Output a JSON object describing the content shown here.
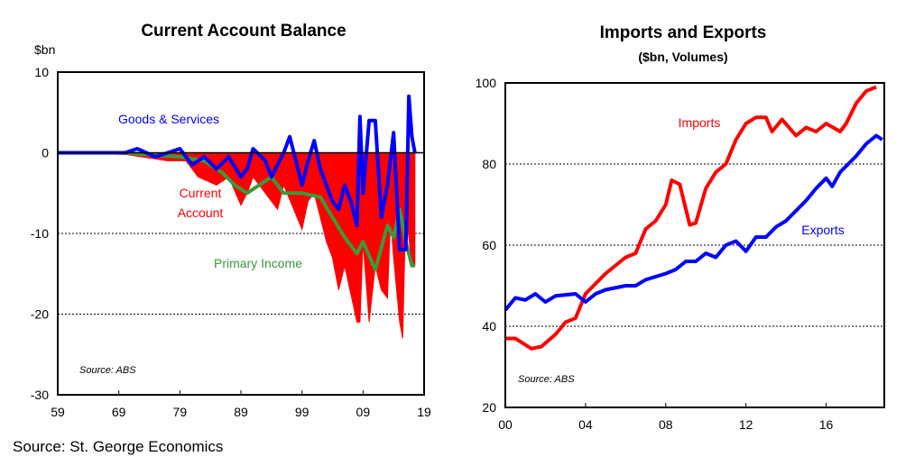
{
  "footer": "Source: St. George Economics",
  "chart_data": [
    {
      "type": "line",
      "title": "Current Account Balance",
      "ylabel": "$bn",
      "source": "Source: ABS",
      "xlim": [
        1959,
        2019
      ],
      "ylim": [
        -30,
        10
      ],
      "x_ticks": [
        "59",
        "69",
        "79",
        "89",
        "99",
        "09",
        "19"
      ],
      "y_ticks": [
        "10",
        "0",
        "-10",
        "-20",
        "-30"
      ],
      "grid": "dotted horizontal at -10 and -20",
      "series": [
        {
          "name": "Current Account",
          "style": "area",
          "color": "#ff0000",
          "points": [
            [
              1959,
              0
            ],
            [
              1970,
              -0.2
            ],
            [
              1977,
              -1
            ],
            [
              1980,
              -1
            ],
            [
              1982,
              -3
            ],
            [
              1985,
              -4
            ],
            [
              1987,
              -3
            ],
            [
              1989,
              -6.5
            ],
            [
              1990,
              -5
            ],
            [
              1991,
              -3
            ],
            [
              1993,
              -5
            ],
            [
              1995,
              -7
            ],
            [
              1996,
              -4
            ],
            [
              1999,
              -9.5
            ],
            [
              2000,
              -6
            ],
            [
              2001,
              -5
            ],
            [
              2003,
              -11
            ],
            [
              2004,
              -13
            ],
            [
              2005,
              -17
            ],
            [
              2006,
              -14
            ],
            [
              2008,
              -21
            ],
            [
              2008.5,
              -21
            ],
            [
              2009,
              -11
            ],
            [
              2010,
              -21
            ],
            [
              2011,
              -14
            ],
            [
              2012,
              -17
            ],
            [
              2013,
              -18
            ],
            [
              2013.5,
              -8
            ],
            [
              2014,
              -13
            ],
            [
              2015,
              -21
            ],
            [
              2015.5,
              -23
            ],
            [
              2016,
              -7
            ],
            [
              2017,
              -14
            ],
            [
              2017.5,
              -14
            ]
          ]
        },
        {
          "name": "Primary Income",
          "style": "line",
          "color": "#3a9a3a",
          "points": [
            [
              1959,
              0
            ],
            [
              1970,
              0
            ],
            [
              1975,
              -0.3
            ],
            [
              1979,
              -0.5
            ],
            [
              1983,
              -1
            ],
            [
              1986,
              -2.5
            ],
            [
              1988,
              -4
            ],
            [
              1990,
              -5
            ],
            [
              1992,
              -4
            ],
            [
              1994,
              -3
            ],
            [
              1996,
              -5
            ],
            [
              1999,
              -5
            ],
            [
              2002,
              -5.5
            ],
            [
              2004,
              -8
            ],
            [
              2006,
              -10.5
            ],
            [
              2008,
              -12.5
            ],
            [
              2009,
              -11
            ],
            [
              2011,
              -14.5
            ],
            [
              2013,
              -9
            ],
            [
              2014,
              -10.5
            ],
            [
              2015,
              -7
            ],
            [
              2016,
              -11
            ],
            [
              2017,
              -14
            ],
            [
              2017.5,
              -14
            ]
          ]
        },
        {
          "name": "Goods & Services",
          "style": "line",
          "color": "#0000ff",
          "points": [
            [
              1959,
              0
            ],
            [
              1965,
              0
            ],
            [
              1970,
              0
            ],
            [
              1972,
              0.5
            ],
            [
              1975,
              -0.5
            ],
            [
              1979,
              0.5
            ],
            [
              1981,
              -1.5
            ],
            [
              1983,
              -0.5
            ],
            [
              1985,
              -2
            ],
            [
              1987,
              -0.5
            ],
            [
              1989,
              -3
            ],
            [
              1990,
              -2
            ],
            [
              1991,
              0.5
            ],
            [
              1993,
              -1
            ],
            [
              1994,
              -3
            ],
            [
              1996,
              0
            ],
            [
              1997,
              2
            ],
            [
              1998,
              -1
            ],
            [
              1999,
              -4
            ],
            [
              2000,
              -1
            ],
            [
              2001,
              1.5
            ],
            [
              2002,
              -2
            ],
            [
              2004,
              -6
            ],
            [
              2005,
              -7
            ],
            [
              2006,
              -4
            ],
            [
              2007,
              -6
            ],
            [
              2008,
              -9
            ],
            [
              2008.5,
              4.5
            ],
            [
              2009,
              -5
            ],
            [
              2010,
              4
            ],
            [
              2011,
              4
            ],
            [
              2012,
              -8
            ],
            [
              2013,
              -4
            ],
            [
              2014,
              2.5
            ],
            [
              2015,
              -12
            ],
            [
              2016,
              -12
            ],
            [
              2016.5,
              7
            ],
            [
              2017,
              2
            ],
            [
              2017.5,
              0
            ]
          ]
        }
      ],
      "annotations": [
        {
          "text": "Goods & Services",
          "color": "#0000ff"
        },
        {
          "text": "Current",
          "color": "#ff0000"
        },
        {
          "text": "Account",
          "color": "#ff0000"
        },
        {
          "text": "Primary Income",
          "color": "#3a9a3a"
        }
      ]
    },
    {
      "type": "line",
      "title": "Imports and Exports",
      "subtitle": "($bn, Volumes)",
      "source": "Source: ABS",
      "xlim": [
        2000,
        2018.9
      ],
      "ylim": [
        20,
        100
      ],
      "x_ticks": [
        "00",
        "04",
        "08",
        "12",
        "16"
      ],
      "y_ticks": [
        "100",
        "80",
        "60",
        "40",
        "20"
      ],
      "grid": "dotted horizontal at 40, 60, 80",
      "series": [
        {
          "name": "Imports",
          "color": "#ff0000",
          "points": [
            [
              2000,
              37
            ],
            [
              2000.5,
              37
            ],
            [
              2001.3,
              34.5
            ],
            [
              2001.8,
              35
            ],
            [
              2002.5,
              38
            ],
            [
              2003,
              41
            ],
            [
              2003.5,
              42
            ],
            [
              2004,
              48
            ],
            [
              2005,
              53
            ],
            [
              2006,
              57
            ],
            [
              2006.5,
              58
            ],
            [
              2007,
              64
            ],
            [
              2007.5,
              66
            ],
            [
              2008,
              70
            ],
            [
              2008.3,
              76
            ],
            [
              2008.7,
              75
            ],
            [
              2009.2,
              65
            ],
            [
              2009.5,
              65.5
            ],
            [
              2010,
              74
            ],
            [
              2010.5,
              78
            ],
            [
              2011,
              80
            ],
            [
              2011.5,
              86
            ],
            [
              2012,
              90
            ],
            [
              2012.5,
              91.5
            ],
            [
              2013,
              91.5
            ],
            [
              2013.3,
              88
            ],
            [
              2013.8,
              91
            ],
            [
              2014.5,
              87
            ],
            [
              2015,
              89
            ],
            [
              2015.5,
              88
            ],
            [
              2016,
              90
            ],
            [
              2016.7,
              88
            ],
            [
              2017,
              90
            ],
            [
              2017.5,
              95
            ],
            [
              2018,
              98
            ],
            [
              2018.5,
              99
            ]
          ]
        },
        {
          "name": "Exports",
          "color": "#0000ff",
          "points": [
            [
              2000,
              44
            ],
            [
              2000.5,
              47
            ],
            [
              2001,
              46.5
            ],
            [
              2001.5,
              48
            ],
            [
              2002,
              46
            ],
            [
              2002.5,
              47.5
            ],
            [
              2003.5,
              48
            ],
            [
              2004,
              46
            ],
            [
              2004.5,
              48
            ],
            [
              2005,
              49
            ],
            [
              2006,
              50
            ],
            [
              2006.5,
              50
            ],
            [
              2007,
              51.5
            ],
            [
              2008,
              53
            ],
            [
              2008.5,
              54
            ],
            [
              2009,
              56
            ],
            [
              2009.5,
              56
            ],
            [
              2010,
              58
            ],
            [
              2010.5,
              57
            ],
            [
              2011,
              60
            ],
            [
              2011.5,
              61
            ],
            [
              2012,
              58.5
            ],
            [
              2012.5,
              62
            ],
            [
              2013,
              62
            ],
            [
              2013.5,
              64.5
            ],
            [
              2014,
              66
            ],
            [
              2015,
              71
            ],
            [
              2015.5,
              74
            ],
            [
              2016,
              76.5
            ],
            [
              2016.3,
              74.5
            ],
            [
              2016.7,
              78
            ],
            [
              2017.5,
              82
            ],
            [
              2018,
              85
            ],
            [
              2018.5,
              87
            ],
            [
              2018.8,
              86
            ]
          ]
        }
      ],
      "annotations": [
        {
          "text": "Imports",
          "color": "#ff0000"
        },
        {
          "text": "Exports",
          "color": "#0000ff"
        }
      ]
    }
  ]
}
